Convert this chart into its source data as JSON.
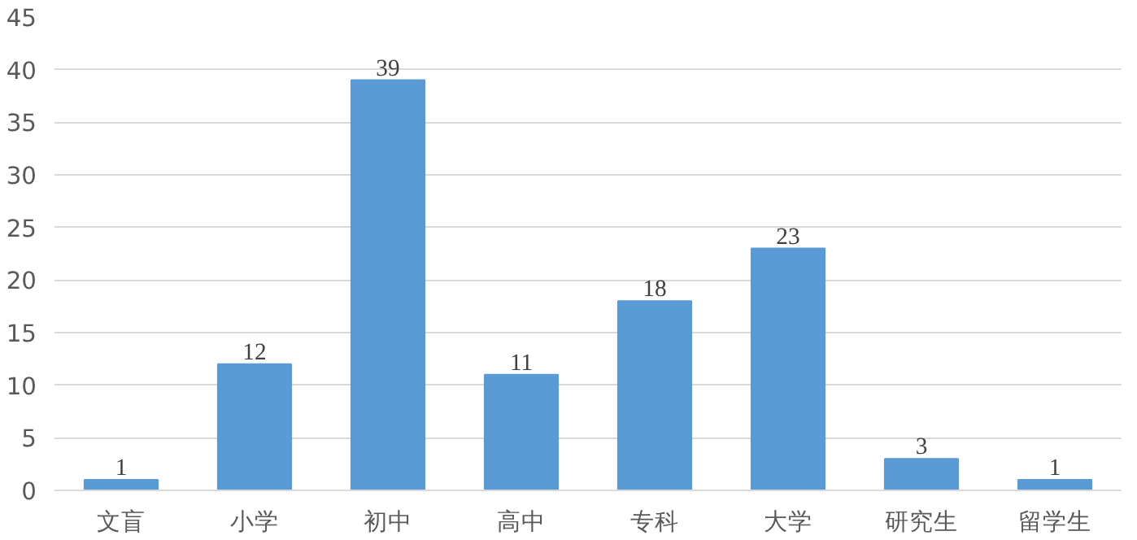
{
  "chart_data": {
    "type": "bar",
    "categories": [
      "文盲",
      "小学",
      "初中",
      "高中",
      "专科",
      "大学",
      "研究生",
      "留学生"
    ],
    "values": [
      1,
      12,
      39,
      11,
      18,
      23,
      3,
      1
    ],
    "color": "#5b9bd5",
    "ylim": [
      0,
      45
    ],
    "yticks": [
      0,
      5,
      10,
      15,
      20,
      25,
      30,
      35,
      40,
      45
    ],
    "grid": "y",
    "data_labels": true
  }
}
